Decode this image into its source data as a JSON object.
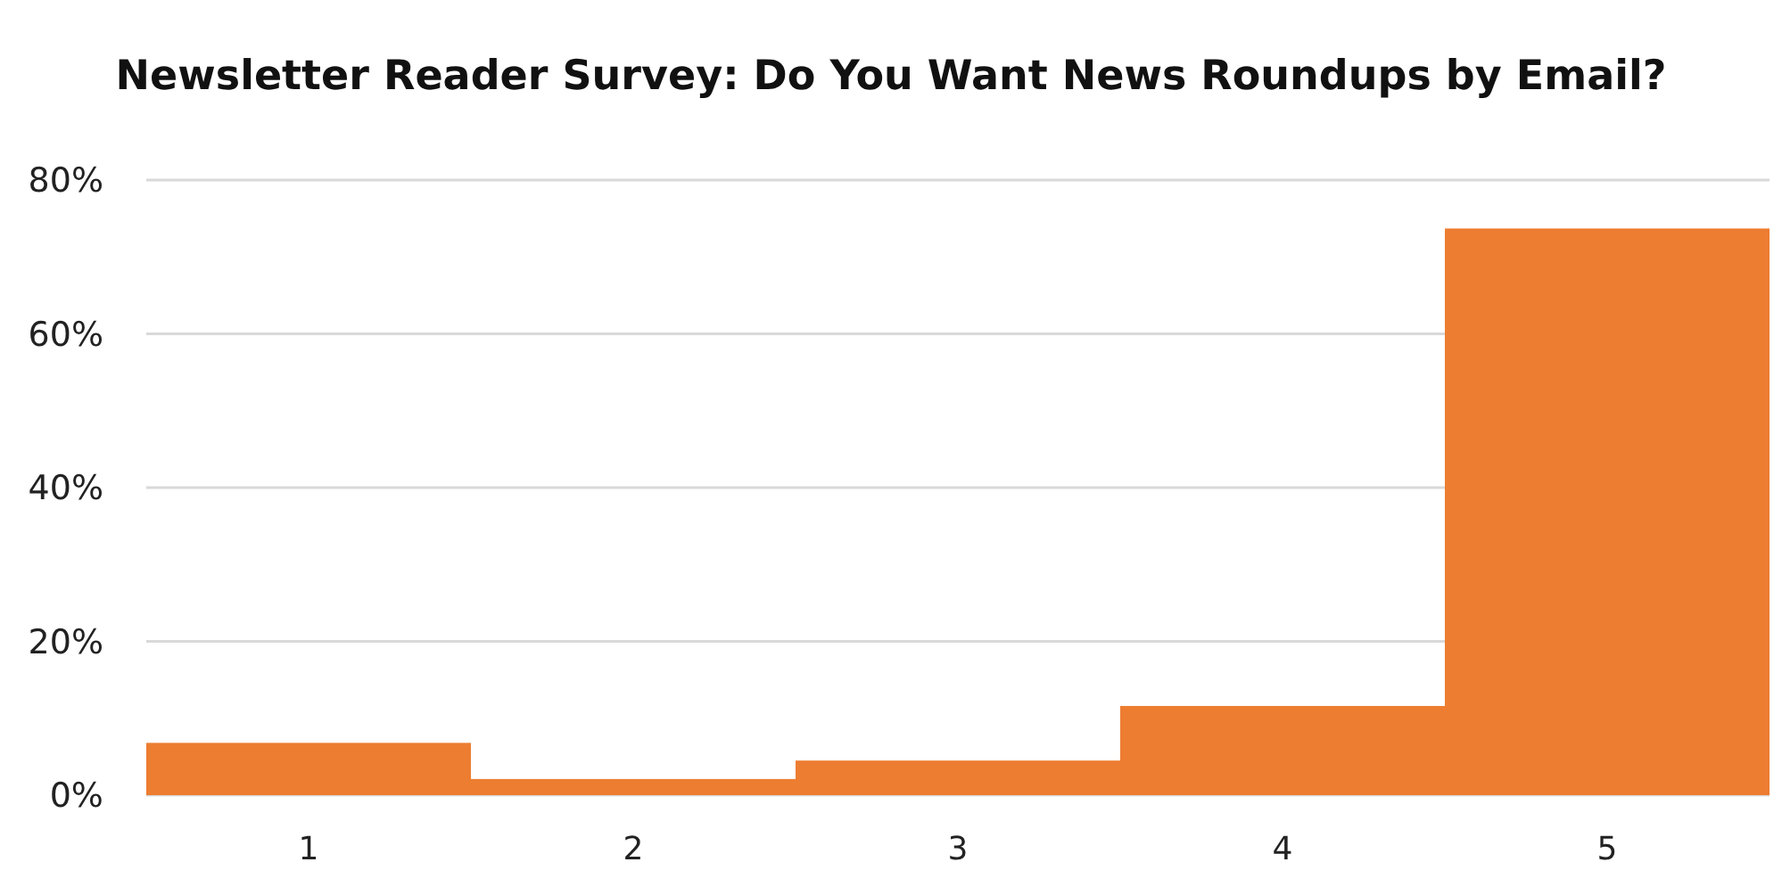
{
  "chart_data": {
    "type": "bar",
    "title": "Newsletter Reader Survey: Do You Want News Roundups by Email?",
    "categories": [
      "1",
      "2",
      "3",
      "4",
      "5"
    ],
    "values": [
      6.8,
      2.1,
      4.5,
      11.6,
      73.7
    ],
    "color": "#ed7d31",
    "ylim": [
      0,
      80
    ],
    "yticks": [
      {
        "value": 0,
        "label": "0%"
      },
      {
        "value": 20,
        "label": "20%"
      },
      {
        "value": 40,
        "label": "40%"
      },
      {
        "value": 60,
        "label": "60%"
      },
      {
        "value": 80,
        "label": "80%"
      }
    ],
    "grid": "y"
  }
}
